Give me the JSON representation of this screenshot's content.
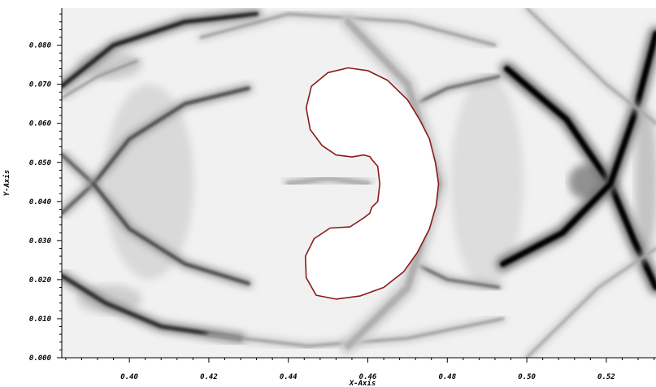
{
  "chart_data": {
    "type": "heatmap",
    "title": "",
    "colormap": "greyscale numerical schlieren (white = low gradient, black = high gradient)",
    "xlabel": "X-Axis",
    "ylabel": "Y-Axis",
    "xlim": [
      0.383,
      0.5325
    ],
    "ylim": [
      0.0,
      0.0895
    ],
    "xticks": [
      0.4,
      0.42,
      0.44,
      0.46,
      0.48,
      0.5,
      0.52
    ],
    "xtick_labels": [
      "0.40",
      "0.42",
      "0.44",
      "0.46",
      "0.48",
      "0.50",
      "0.52"
    ],
    "yticks": [
      0.0,
      0.01,
      0.02,
      0.03,
      0.04,
      0.05,
      0.06,
      0.07,
      0.08
    ],
    "ytick_labels": [
      "0.000",
      "0.010",
      "0.020",
      "0.030",
      "0.040",
      "0.050",
      "0.060",
      "0.070",
      "0.080"
    ],
    "grid": false,
    "interface_color": "#8b1a1a",
    "interface_contour": [
      [
        0.4612,
        0.0505
      ],
      [
        0.4605,
        0.0515
      ],
      [
        0.459,
        0.0519
      ],
      [
        0.456,
        0.0514
      ],
      [
        0.452,
        0.0519
      ],
      [
        0.4485,
        0.0543
      ],
      [
        0.4455,
        0.0584
      ],
      [
        0.4445,
        0.064
      ],
      [
        0.4458,
        0.0695
      ],
      [
        0.45,
        0.073
      ],
      [
        0.455,
        0.0742
      ],
      [
        0.46,
        0.0735
      ],
      [
        0.465,
        0.071
      ],
      [
        0.47,
        0.066
      ],
      [
        0.473,
        0.061
      ],
      [
        0.4755,
        0.056
      ],
      [
        0.477,
        0.05
      ],
      [
        0.4778,
        0.0445
      ],
      [
        0.4772,
        0.039
      ],
      [
        0.4755,
        0.033
      ],
      [
        0.4725,
        0.027
      ],
      [
        0.469,
        0.022
      ],
      [
        0.464,
        0.018
      ],
      [
        0.458,
        0.0158
      ],
      [
        0.452,
        0.015
      ],
      [
        0.447,
        0.016
      ],
      [
        0.4445,
        0.0205
      ],
      [
        0.4443,
        0.026
      ],
      [
        0.4465,
        0.0305
      ],
      [
        0.4505,
        0.0332
      ],
      [
        0.4555,
        0.0335
      ],
      [
        0.459,
        0.0358
      ],
      [
        0.4605,
        0.037
      ],
      [
        0.461,
        0.0385
      ],
      [
        0.4625,
        0.04
      ],
      [
        0.463,
        0.0445
      ],
      [
        0.4625,
        0.049
      ]
    ],
    "shock_features": [
      {
        "points": [
          [
            0.383,
            0.0695
          ],
          [
            0.396,
            0.08
          ],
          [
            0.414,
            0.086
          ],
          [
            0.432,
            0.088
          ]
        ],
        "strength": 0.85,
        "width": 5
      },
      {
        "points": [
          [
            0.383,
            0.0665
          ],
          [
            0.392,
            0.072
          ],
          [
            0.402,
            0.076
          ]
        ],
        "strength": 0.45,
        "width": 2
      },
      {
        "points": [
          [
            0.383,
            0.052
          ],
          [
            0.391,
            0.0445
          ],
          [
            0.383,
            0.037
          ]
        ],
        "strength": 0.6,
        "width": 4
      },
      {
        "points": [
          [
            0.391,
            0.0445
          ],
          [
            0.4,
            0.056
          ],
          [
            0.414,
            0.065
          ],
          [
            0.43,
            0.069
          ]
        ],
        "strength": 0.7,
        "width": 4
      },
      {
        "points": [
          [
            0.391,
            0.0445
          ],
          [
            0.4,
            0.033
          ],
          [
            0.414,
            0.024
          ],
          [
            0.43,
            0.019
          ]
        ],
        "strength": 0.7,
        "width": 4
      },
      {
        "points": [
          [
            0.383,
            0.021
          ],
          [
            0.394,
            0.014
          ],
          [
            0.408,
            0.008
          ],
          [
            0.428,
            0.005
          ]
        ],
        "strength": 0.8,
        "width": 5
      },
      {
        "points": [
          [
            0.495,
            0.074
          ],
          [
            0.51,
            0.061
          ],
          [
            0.521,
            0.0445
          ],
          [
            0.527,
            0.03
          ],
          [
            0.5325,
            0.018
          ]
        ],
        "strength": 1.0,
        "width": 7
      },
      {
        "points": [
          [
            0.5325,
            0.083
          ],
          [
            0.527,
            0.062
          ],
          [
            0.521,
            0.0445
          ],
          [
            0.509,
            0.032
          ],
          [
            0.494,
            0.024
          ]
        ],
        "strength": 1.0,
        "width": 7
      },
      {
        "points": [
          [
            0.468,
            0.063
          ],
          [
            0.48,
            0.069
          ],
          [
            0.493,
            0.072
          ]
        ],
        "strength": 0.6,
        "width": 3
      },
      {
        "points": [
          [
            0.468,
            0.026
          ],
          [
            0.48,
            0.02
          ],
          [
            0.493,
            0.018
          ]
        ],
        "strength": 0.6,
        "width": 3
      },
      {
        "points": [
          [
            0.418,
            0.082
          ],
          [
            0.44,
            0.088
          ],
          [
            0.47,
            0.086
          ],
          [
            0.492,
            0.08
          ]
        ],
        "strength": 0.35,
        "width": 3
      },
      {
        "points": [
          [
            0.42,
            0.006
          ],
          [
            0.445,
            0.003
          ],
          [
            0.47,
            0.005
          ],
          [
            0.494,
            0.01
          ]
        ],
        "strength": 0.35,
        "width": 3
      },
      {
        "points": [
          [
            0.455,
            0.086
          ],
          [
            0.47,
            0.07
          ],
          [
            0.478,
            0.0445
          ],
          [
            0.47,
            0.018
          ],
          [
            0.455,
            0.003
          ]
        ],
        "strength": 0.25,
        "width": 8
      },
      {
        "points": [
          [
            0.44,
            0.0445
          ],
          [
            0.45,
            0.046
          ],
          [
            0.46,
            0.0445
          ]
        ],
        "strength": 0.25,
        "width": 6
      },
      {
        "points": [
          [
            0.5,
            0.0895
          ],
          [
            0.52,
            0.07
          ],
          [
            0.5325,
            0.06
          ]
        ],
        "strength": 0.3,
        "width": 3
      },
      {
        "points": [
          [
            0.5,
            0.0
          ],
          [
            0.518,
            0.018
          ],
          [
            0.5325,
            0.028
          ]
        ],
        "strength": 0.3,
        "width": 3
      }
    ]
  }
}
